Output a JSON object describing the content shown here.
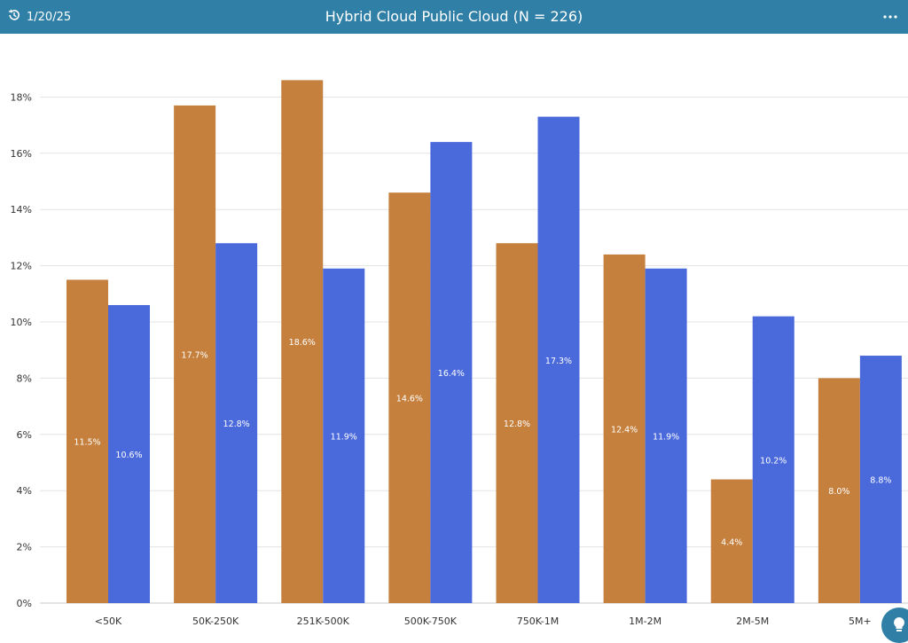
{
  "header": {
    "date": "1/20/25",
    "title": "Hybrid Cloud Public Cloud (N = 226)",
    "history_icon": "history-icon",
    "more_icon": "more-options-icon"
  },
  "colors": {
    "header_bg": "#2f7fa6",
    "series_hybrid": "#c5803d",
    "series_public": "#4a69db"
  },
  "assistant_icon": "lightbulb-icon",
  "chart_data": {
    "type": "bar",
    "title": "Hybrid Cloud Public Cloud (N = 226)",
    "categories": [
      "<50K",
      "50K-250K",
      "251K-500K",
      "500K-750K",
      "750K-1M",
      "1M-2M",
      "2M-5M",
      "5M+"
    ],
    "series": [
      {
        "values": [
          11.5,
          17.7,
          18.6,
          14.6,
          12.8,
          12.4,
          4.4,
          8.0
        ],
        "labels": [
          "11.5%",
          "17.7%",
          "18.6%",
          "14.6%",
          "12.8%",
          "12.4%",
          "4.4%",
          "8.0%"
        ],
        "color": "#c5803d"
      },
      {
        "values": [
          10.6,
          12.8,
          11.9,
          16.4,
          17.3,
          11.9,
          10.2,
          8.8
        ],
        "labels": [
          "10.6%",
          "12.8%",
          "11.9%",
          "16.4%",
          "17.3%",
          "11.9%",
          "10.2%",
          "8.8%"
        ],
        "color": "#4a69db"
      }
    ],
    "ylim": [
      0,
      20
    ],
    "yticks": [
      "0%",
      "2%",
      "4%",
      "6%",
      "8%",
      "10%",
      "12%",
      "14%",
      "16%",
      "18%"
    ],
    "grid": true,
    "legend": "none"
  }
}
